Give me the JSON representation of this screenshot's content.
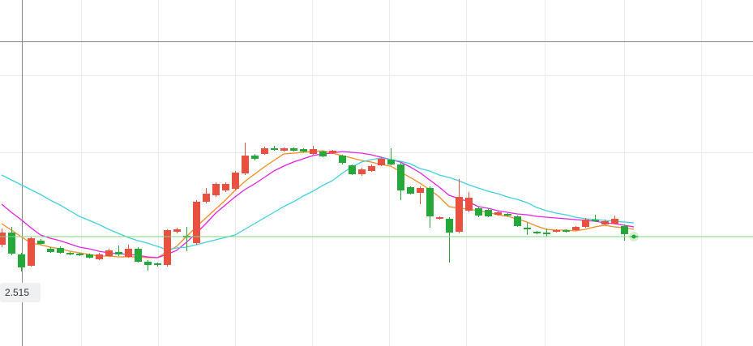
{
  "chart_data": {
    "type": "candlestick",
    "ylim": [
      2.449,
      2.876
    ],
    "up_color": "#e8503f",
    "down_color": "#24a83a",
    "open": [
      2.574,
      2.589,
      2.562,
      2.548,
      2.579,
      2.569,
      2.57,
      2.564,
      2.563,
      2.562,
      2.556,
      2.56,
      2.565,
      2.559,
      2.569,
      2.553,
      2.551,
      2.549,
      2.59,
      2.585,
      2.576,
      2.627,
      2.635,
      2.641,
      2.643,
      2.662,
      2.684,
      2.686,
      2.693,
      2.69,
      2.693,
      2.692,
      2.686,
      2.689,
      2.687,
      2.684,
      2.672,
      2.661,
      2.665,
      2.672,
      2.679,
      2.673,
      2.645,
      2.638,
      2.644,
      2.606,
      2.606,
      2.59,
      2.616,
      2.619,
      2.617,
      2.611,
      2.612,
      2.609,
      2.595,
      2.59,
      2.589,
      2.59,
      2.592,
      2.592,
      2.596,
      2.605,
      2.599,
      2.6,
      2.597,
      2.585
    ],
    "high": [
      2.594,
      2.596,
      2.564,
      2.584,
      2.581,
      2.571,
      2.572,
      2.565,
      2.564,
      2.563,
      2.564,
      2.569,
      2.573,
      2.574,
      2.571,
      2.555,
      2.552,
      2.593,
      2.595,
      2.596,
      2.629,
      2.644,
      2.651,
      2.651,
      2.665,
      2.7,
      2.686,
      2.695,
      2.696,
      2.694,
      2.694,
      2.693,
      2.696,
      2.69,
      2.691,
      2.685,
      2.673,
      2.669,
      2.673,
      2.682,
      2.693,
      2.675,
      2.646,
      2.646,
      2.646,
      2.609,
      2.608,
      2.655,
      2.639,
      2.621,
      2.619,
      2.615,
      2.613,
      2.61,
      2.601,
      2.591,
      2.594,
      2.593,
      2.593,
      2.597,
      2.607,
      2.611,
      2.605,
      2.61,
      2.599,
      2.586
    ],
    "low": [
      2.571,
      2.561,
      2.541,
      2.547,
      2.574,
      2.564,
      2.563,
      2.561,
      2.56,
      2.557,
      2.555,
      2.559,
      2.56,
      2.558,
      2.552,
      2.542,
      2.547,
      2.547,
      2.588,
      2.566,
      2.574,
      2.625,
      2.633,
      2.639,
      2.641,
      2.66,
      2.678,
      2.685,
      2.69,
      2.689,
      2.689,
      2.688,
      2.685,
      2.682,
      2.686,
      2.673,
      2.66,
      2.659,
      2.664,
      2.671,
      2.672,
      2.629,
      2.636,
      2.624,
      2.595,
      2.605,
      2.552,
      2.588,
      2.614,
      2.608,
      2.608,
      2.61,
      2.609,
      2.596,
      2.586,
      2.587,
      2.584,
      2.589,
      2.589,
      2.591,
      2.595,
      2.602,
      2.598,
      2.599,
      2.579,
      2.582
    ],
    "close": [
      2.589,
      2.563,
      2.546,
      2.582,
      2.575,
      2.565,
      2.564,
      2.562,
      2.561,
      2.558,
      2.562,
      2.567,
      2.562,
      2.569,
      2.553,
      2.549,
      2.549,
      2.592,
      2.593,
      2.583,
      2.627,
      2.637,
      2.649,
      2.649,
      2.663,
      2.684,
      2.68,
      2.693,
      2.691,
      2.693,
      2.69,
      2.689,
      2.692,
      2.683,
      2.69,
      2.675,
      2.661,
      2.667,
      2.671,
      2.68,
      2.673,
      2.641,
      2.637,
      2.644,
      2.609,
      2.608,
      2.589,
      2.633,
      2.632,
      2.61,
      2.609,
      2.614,
      2.61,
      2.597,
      2.593,
      2.588,
      2.587,
      2.592,
      2.59,
      2.596,
      2.605,
      2.603,
      2.603,
      2.606,
      2.587,
      2.583
    ],
    "series": [
      {
        "color": "#f28c1e",
        "values": [
          2.6,
          2.592,
          2.584,
          2.576,
          2.574,
          2.571,
          2.569,
          2.566,
          2.564,
          2.562,
          2.56,
          2.56,
          2.559,
          2.559,
          2.559,
          2.558,
          2.558,
          2.565,
          2.572,
          2.584,
          2.596,
          2.607,
          2.618,
          2.629,
          2.641,
          2.652,
          2.661,
          2.67,
          2.678,
          2.686,
          2.687,
          2.688,
          2.689,
          2.69,
          2.687,
          2.684,
          2.681,
          2.678,
          2.676,
          2.673,
          2.671,
          2.664,
          2.657,
          2.65,
          2.642,
          2.633,
          2.621,
          2.619,
          2.618,
          2.616,
          2.614,
          2.611,
          2.609,
          2.606,
          2.602,
          2.597,
          2.593,
          2.592,
          2.592,
          2.591,
          2.593,
          2.596,
          2.598,
          2.596,
          2.595,
          2.593
        ]
      },
      {
        "color": "#e620e6",
        "values": [
          2.624,
          2.614,
          2.605,
          2.595,
          2.586,
          2.582,
          2.579,
          2.575,
          2.571,
          2.569,
          2.566,
          2.564,
          2.563,
          2.562,
          2.561,
          2.559,
          2.558,
          2.562,
          2.567,
          2.577,
          2.588,
          2.6,
          2.613,
          2.623,
          2.633,
          2.642,
          2.649,
          2.657,
          2.665,
          2.671,
          2.676,
          2.68,
          2.684,
          2.686,
          2.687,
          2.689,
          2.688,
          2.687,
          2.685,
          2.682,
          2.679,
          2.676,
          2.67,
          2.663,
          2.654,
          2.645,
          2.635,
          2.631,
          2.627,
          2.621,
          2.619,
          2.616,
          2.614,
          2.612,
          2.611,
          2.609,
          2.608,
          2.607,
          2.606,
          2.605,
          2.604,
          2.603,
          2.601,
          2.6,
          2.598,
          2.596
        ]
      },
      {
        "color": "#3fd0e0",
        "values": [
          2.66,
          2.654,
          2.648,
          2.642,
          2.636,
          2.629,
          2.623,
          2.616,
          2.609,
          2.604,
          2.599,
          2.593,
          2.588,
          2.583,
          2.579,
          2.576,
          2.572,
          2.568,
          2.57,
          2.571,
          2.574,
          2.577,
          2.58,
          2.583,
          2.586,
          2.593,
          2.6,
          2.607,
          2.614,
          2.621,
          2.627,
          2.634,
          2.64,
          2.647,
          2.653,
          2.662,
          2.67,
          2.676,
          2.679,
          2.681,
          2.679,
          2.677,
          2.674,
          2.668,
          2.665,
          2.66,
          2.657,
          2.653,
          2.648,
          2.644,
          2.64,
          2.637,
          2.633,
          2.63,
          2.626,
          2.62,
          2.616,
          2.613,
          2.611,
          2.608,
          2.606,
          2.605,
          2.604,
          2.603,
          2.602,
          2.601
        ]
      }
    ],
    "last_price": 2.584,
    "last_price_color": "#7fd67f",
    "crosshair_value": 2.515
  }
}
